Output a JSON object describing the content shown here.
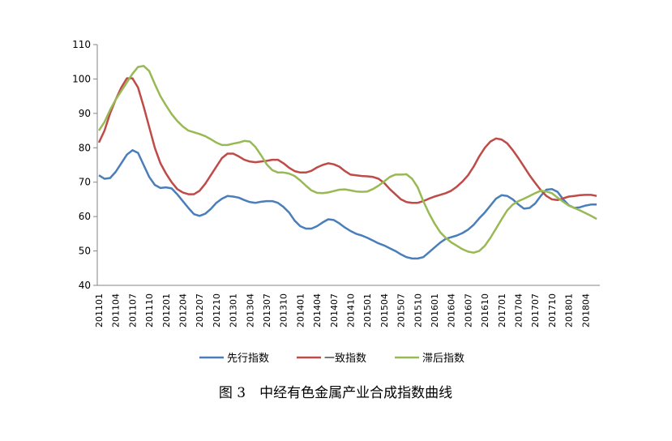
{
  "chart_data": {
    "type": "line",
    "caption": "图 3　中经有色金属产业合成指数曲线",
    "categories": [
      "201101",
      null,
      null,
      "201104",
      null,
      null,
      "201107",
      null,
      null,
      "201110",
      null,
      null,
      "201201",
      null,
      null,
      "201204",
      null,
      null,
      "201207",
      null,
      null,
      "201210",
      null,
      null,
      "201301",
      null,
      null,
      "201304",
      null,
      null,
      "201307",
      null,
      null,
      "201310",
      null,
      null,
      "201401",
      null,
      null,
      "201404",
      null,
      null,
      "201407",
      null,
      null,
      "201410",
      null,
      null,
      "201501",
      null,
      null,
      "201504",
      null,
      null,
      "201507",
      null,
      null,
      "201510",
      null,
      null,
      "201601",
      null,
      null,
      "201604",
      null,
      null,
      "201607",
      null,
      null,
      "201610",
      null,
      null,
      "201701",
      null,
      null,
      "201704",
      null,
      null,
      "201707",
      null,
      null,
      "201710",
      null,
      null,
      "201801",
      null,
      null,
      "201804",
      null,
      null
    ],
    "series": [
      {
        "name": "先行指数",
        "color": "#4a7ebb",
        "values": [
          72,
          71,
          71.2,
          73,
          75.5,
          78,
          79.3,
          78.5,
          75,
          71.5,
          69.2,
          68.3,
          68.5,
          68.2,
          66.5,
          64.5,
          62.5,
          60.7,
          60.2,
          60.8,
          62.2,
          64,
          65.2,
          66,
          65.8,
          65.5,
          64.8,
          64.2,
          64,
          64.3,
          64.5,
          64.5,
          64,
          62.8,
          61.2,
          58.8,
          57.2,
          56.5,
          56.5,
          57.2,
          58.3,
          59.2,
          59,
          58,
          56.8,
          55.8,
          55,
          54.5,
          53.8,
          53,
          52.2,
          51.6,
          50.8,
          50,
          49,
          48.2,
          47.8,
          47.8,
          48.2,
          49.6,
          51,
          52.4,
          53.5,
          54,
          54.5,
          55.2,
          56.2,
          57.6,
          59.5,
          61.2,
          63.2,
          65.2,
          66.2,
          66,
          65,
          63.5,
          62.3,
          62.5,
          63.8,
          66,
          67.8,
          68,
          67.2,
          65,
          63.3,
          62.5,
          62.7,
          63.2,
          63.5,
          63.5
        ]
      },
      {
        "name": "一致指数",
        "color": "#be4b48",
        "values": [
          81.5,
          85,
          90,
          94,
          97.5,
          100.2,
          100.2,
          97.5,
          92,
          86,
          80,
          75.5,
          72.5,
          70,
          68,
          67,
          66.5,
          66.5,
          67.5,
          69.5,
          72,
          74.5,
          77,
          78.3,
          78.3,
          77.5,
          76.5,
          76,
          75.8,
          76,
          76.2,
          76.5,
          76.5,
          75.5,
          74.2,
          73.2,
          72.8,
          72.8,
          73.3,
          74.3,
          75,
          75.5,
          75.2,
          74.5,
          73.2,
          72.2,
          72,
          71.8,
          71.7,
          71.5,
          71,
          69.8,
          68,
          66.5,
          65,
          64.2,
          64,
          64,
          64.5,
          65.2,
          65.8,
          66.3,
          66.8,
          67.5,
          68.7,
          70.2,
          72,
          74.5,
          77.5,
          80,
          81.8,
          82.7,
          82.4,
          81.3,
          79.3,
          77,
          74.5,
          72,
          69.8,
          67.7,
          66,
          65,
          64.8,
          65.3,
          65.8,
          66,
          66.2,
          66.3,
          66.3,
          66
        ]
      },
      {
        "name": "滞后指数",
        "color": "#98b954",
        "values": [
          85,
          87.5,
          91,
          94,
          96.5,
          99,
          101.5,
          103.5,
          103.8,
          102.3,
          98.5,
          95,
          92.3,
          89.8,
          87.8,
          86.2,
          85,
          84.5,
          84,
          83.4,
          82.5,
          81.5,
          80.8,
          80.8,
          81.2,
          81.5,
          82,
          81.8,
          80.2,
          77.8,
          75.2,
          73.5,
          72.8,
          72.8,
          72.5,
          71.8,
          70.5,
          69,
          67.6,
          66.9,
          66.8,
          67,
          67.4,
          67.8,
          67.9,
          67.6,
          67.3,
          67.2,
          67.3,
          68,
          69,
          70.2,
          71.5,
          72.2,
          72.2,
          72.3,
          71,
          68.5,
          64.5,
          61,
          58,
          55.5,
          53.8,
          52.5,
          51.5,
          50.5,
          49.8,
          49.5,
          50,
          51.5,
          53.8,
          56.5,
          59.2,
          61.8,
          63.5,
          64.5,
          65.2,
          66,
          66.8,
          67.5,
          67.3,
          66.8,
          65.5,
          64.3,
          63.2,
          62.5,
          61.8,
          61,
          60.2,
          59.3
        ]
      }
    ],
    "ylim": [
      40,
      110
    ],
    "yticks": [
      40,
      50,
      60,
      70,
      80,
      90,
      100,
      110
    ],
    "grid": false,
    "legend": "bottom"
  }
}
